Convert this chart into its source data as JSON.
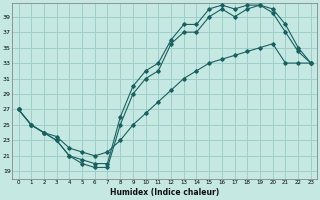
{
  "xlabel": "Humidex (Indice chaleur)",
  "bg_color": "#c5e8e2",
  "grid_color": "#9ecfc8",
  "line_color": "#1a6060",
  "xlim": [
    -0.5,
    23.5
  ],
  "ylim": [
    18.0,
    40.8
  ],
  "xticks": [
    0,
    1,
    2,
    3,
    4,
    5,
    6,
    7,
    8,
    9,
    10,
    11,
    12,
    13,
    14,
    15,
    16,
    17,
    18,
    19,
    20,
    21,
    22,
    23
  ],
  "yticks": [
    19,
    21,
    23,
    25,
    27,
    29,
    31,
    33,
    35,
    37,
    39
  ],
  "line1_x": [
    0,
    1,
    2,
    3,
    4,
    5,
    6,
    7,
    8,
    9,
    10,
    11,
    12,
    13,
    14,
    15,
    16,
    17,
    18,
    19,
    20,
    21,
    22,
    23
  ],
  "line1_y": [
    27,
    25,
    24,
    23,
    21,
    20,
    19.5,
    19.5,
    25,
    29,
    31,
    32,
    35.5,
    37,
    37,
    39,
    40,
    39,
    40,
    40.5,
    39.5,
    37,
    34.5,
    33
  ],
  "line2_x": [
    0,
    1,
    2,
    3,
    4,
    5,
    6,
    7,
    8,
    9,
    10,
    11,
    12,
    13,
    14,
    15,
    16,
    17,
    18,
    19,
    20,
    21,
    22,
    23
  ],
  "line2_y": [
    27,
    25,
    24,
    23,
    21,
    20.5,
    20,
    20,
    26,
    30,
    32,
    33,
    36,
    38,
    38,
    40,
    40.5,
    40,
    40.5,
    40.5,
    40,
    38,
    35,
    33
  ],
  "line3_x": [
    0,
    1,
    2,
    3,
    4,
    5,
    6,
    7,
    8,
    9,
    10,
    11,
    12,
    13,
    14,
    15,
    16,
    17,
    18,
    19,
    20,
    21,
    22,
    23
  ],
  "line3_y": [
    27,
    25,
    24,
    23.5,
    22,
    21.5,
    21,
    21.5,
    23,
    25,
    26.5,
    28,
    29.5,
    31,
    32,
    33,
    33.5,
    34,
    34.5,
    35,
    35.5,
    33,
    33,
    33
  ]
}
